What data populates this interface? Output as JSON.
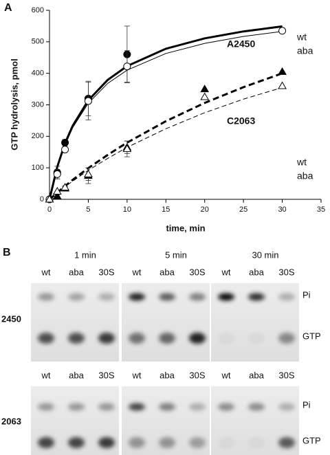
{
  "chart_data": {
    "type": "scatter",
    "panel_label": "A",
    "xlabel": "time, min",
    "ylabel": "GTP hydrolysis, pmol",
    "xlim": [
      0,
      35
    ],
    "xticks": [
      0,
      5,
      10,
      15,
      20,
      25,
      30,
      35
    ],
    "ylim": [
      0,
      600
    ],
    "yticks": [
      0,
      100,
      200,
      300,
      400,
      500,
      600
    ],
    "curve_x": [
      0,
      1,
      2,
      3,
      5,
      7.5,
      10,
      15,
      20,
      25,
      30
    ],
    "series": [
      {
        "name": "wt",
        "group": "A2450",
        "color": "#000000",
        "marker": "circle",
        "filled": true,
        "line_width": 3,
        "dashed": false,
        "x": [
          0,
          1,
          2,
          5,
          10
        ],
        "values": [
          0,
          85,
          180,
          320,
          460
        ],
        "errors": [
          null,
          20,
          10,
          55,
          90
        ],
        "curve": [
          0,
          103,
          178,
          234,
          314,
          379,
          423,
          478,
          511,
          533,
          549
        ]
      },
      {
        "name": "aba",
        "group": "A2450",
        "color": "#000000",
        "marker": "circle",
        "filled": false,
        "line_width": 1,
        "dashed": false,
        "x": [
          0,
          1,
          2,
          5,
          10,
          30
        ],
        "values": [
          0,
          80,
          158,
          312,
          422,
          535
        ],
        "errors": [
          null,
          15,
          null,
          60,
          50,
          null
        ],
        "curve": [
          0,
          100,
          172,
          228,
          305,
          368,
          410,
          463,
          495,
          517,
          533
        ]
      },
      {
        "name": "wt",
        "group": "C2063",
        "color": "#000000",
        "marker": "triangle",
        "filled": true,
        "line_width": 3,
        "dashed": true,
        "x": [
          0,
          1,
          2,
          5,
          10,
          20,
          30
        ],
        "values": [
          0,
          10,
          35,
          75,
          165,
          350,
          405
        ],
        "errors": [
          null,
          5,
          5,
          25,
          20,
          null,
          null
        ],
        "curve": [
          0,
          21,
          42,
          62,
          99,
          141,
          180,
          248,
          306,
          356,
          400
        ]
      },
      {
        "name": "aba",
        "group": "C2063",
        "color": "#000000",
        "marker": "triangle",
        "filled": false,
        "line_width": 1,
        "dashed": true,
        "x": [
          0,
          1,
          2,
          5,
          10,
          20,
          30
        ],
        "values": [
          0,
          25,
          38,
          80,
          160,
          325,
          360
        ],
        "errors": [
          null,
          null,
          5,
          20,
          25,
          null,
          null
        ],
        "curve": [
          0,
          20,
          40,
          58,
          92,
          130,
          165,
          224,
          275,
          318,
          355
        ]
      }
    ]
  },
  "panel_b": {
    "label": "B",
    "times": [
      "1 min",
      "5 min",
      "30 min"
    ],
    "lanes": [
      "wt",
      "aba",
      "30S"
    ],
    "rows": [
      "2450",
      "2063"
    ],
    "bands": [
      "Pi",
      "GTP"
    ]
  }
}
